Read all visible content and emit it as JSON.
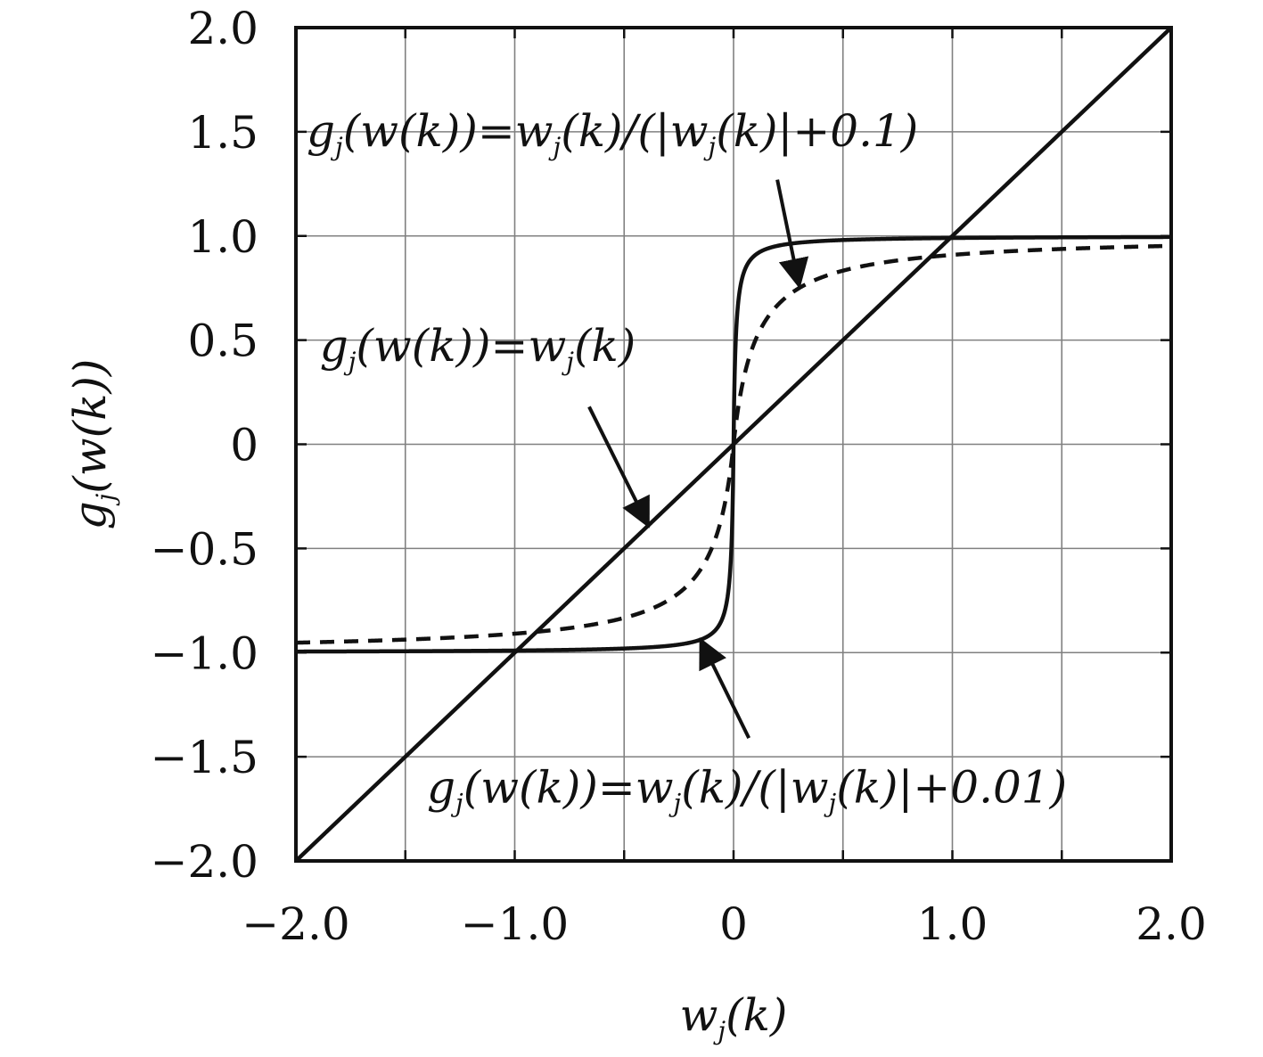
{
  "chart_data": {
    "type": "line",
    "title": "",
    "xlabel": "w_j(k)",
    "ylabel": "g_j(w(k))",
    "xlim": [
      -2.0,
      2.0
    ],
    "ylim": [
      -2.0,
      2.0
    ],
    "grid": true,
    "x_ticks": [
      -2.0,
      -1.5,
      -1.0,
      -0.5,
      0,
      0.5,
      1.0,
      1.5,
      2.0
    ],
    "y_ticks": [
      -2.0,
      -1.5,
      -1.0,
      -0.5,
      0,
      0.5,
      1.0,
      1.5,
      2.0
    ],
    "x_tick_labels": [
      {
        "value": -2.0,
        "text": "−2.0"
      },
      {
        "value": -1.0,
        "text": "−1.0"
      },
      {
        "value": 0,
        "text": "0"
      },
      {
        "value": 1.0,
        "text": "1.0"
      },
      {
        "value": 2.0,
        "text": "2.0"
      }
    ],
    "y_tick_labels": [
      {
        "value": 2.0,
        "text": "2.0"
      },
      {
        "value": 1.5,
        "text": "1.5"
      },
      {
        "value": 1.0,
        "text": "1.0"
      },
      {
        "value": 0.5,
        "text": "0.5"
      },
      {
        "value": 0,
        "text": "0"
      },
      {
        "value": -0.5,
        "text": "−0.5"
      },
      {
        "value": -1.0,
        "text": "−1.0"
      },
      {
        "value": -1.5,
        "text": "−1.5"
      },
      {
        "value": -2.0,
        "text": "−2.0"
      }
    ],
    "series": [
      {
        "function": "identity",
        "epsilon": null,
        "line_style": "solid",
        "color": "#111111"
      },
      {
        "function": "normalized",
        "epsilon": 0.1,
        "line_style": "dashed",
        "color": "#111111"
      },
      {
        "function": "normalized",
        "epsilon": 0.01,
        "line_style": "solid",
        "color": "#111111"
      }
    ],
    "annotations": [
      {
        "series_index": 1,
        "text": "g_j(w(k))=w_j(k)/(|w_j(k)|+0.1)",
        "text_at": [
          -2.0,
          1.43
        ],
        "arrow_from": [
          0.2,
          1.27
        ],
        "arrow_to": [
          0.3,
          0.76
        ]
      },
      {
        "series_index": 0,
        "text": "g_j(w(k))=w_j(k)",
        "text_at": [
          -1.94,
          0.4
        ],
        "arrow_from": [
          -0.66,
          0.18
        ],
        "arrow_to": [
          -0.39,
          -0.39
        ]
      },
      {
        "series_index": 2,
        "text": "g_j(w(k))=w_j(k)/(|w_j(k)|+0.01)",
        "text_at": [
          -1.45,
          -1.72
        ],
        "arrow_from": [
          0.07,
          -1.41
        ],
        "arrow_to": [
          -0.15,
          -0.94
        ]
      }
    ]
  }
}
